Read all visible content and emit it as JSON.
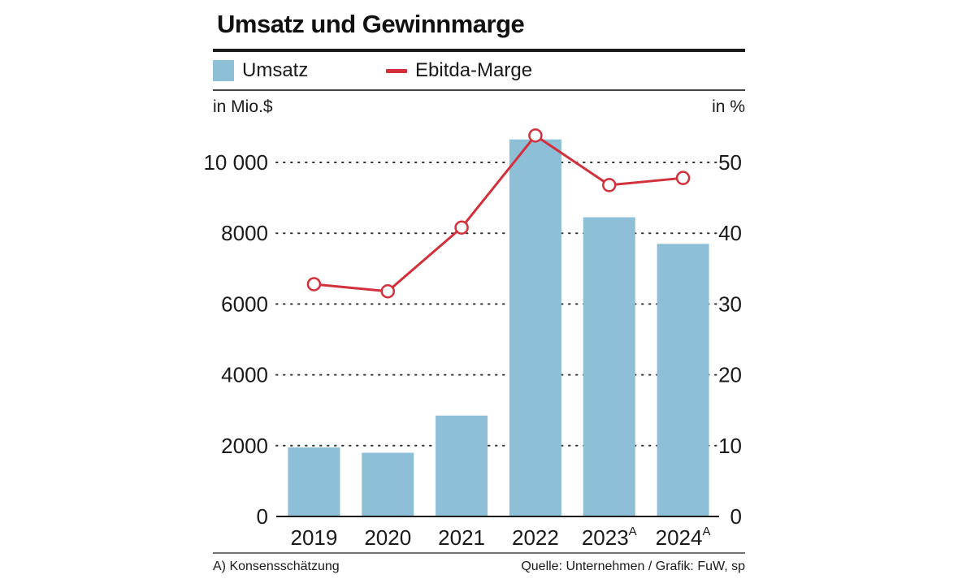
{
  "title": "Umsatz und Gewinnmarge",
  "legend": {
    "bar_label": "Umsatz",
    "line_label": "Ebitda-Marge"
  },
  "units": {
    "left": "in Mio.$",
    "right": "in %"
  },
  "footer": {
    "note": "A) Konsensschätzung",
    "source": "Quelle: Unternehmen / Grafik: FuW, sp"
  },
  "colors": {
    "bar": "#8dbfd6",
    "line": "#d3303b"
  },
  "chart_data": {
    "type": "bar",
    "title": "Umsatz und Gewinnmarge",
    "categories": [
      {
        "label": "2019",
        "sup": ""
      },
      {
        "label": "2020",
        "sup": ""
      },
      {
        "label": "2021",
        "sup": ""
      },
      {
        "label": "2022",
        "sup": ""
      },
      {
        "label": "2023",
        "sup": "A"
      },
      {
        "label": "2024",
        "sup": "A"
      }
    ],
    "series": [
      {
        "name": "Umsatz",
        "type": "bar",
        "axis": "left",
        "values": [
          1950,
          1800,
          2850,
          10650,
          8450,
          7700
        ]
      },
      {
        "name": "Ebitda-Marge",
        "type": "line",
        "axis": "right",
        "values": [
          32.8,
          31.8,
          40.8,
          53.8,
          46.8,
          47.8
        ]
      }
    ],
    "left_axis": {
      "label": "in Mio.$",
      "range": [
        0,
        12500
      ],
      "ticks": [
        0,
        2000,
        4000,
        6000,
        8000,
        10000
      ],
      "tick_labels": [
        "0",
        "2000",
        "4000",
        "6000",
        "8000",
        "10 000"
      ]
    },
    "right_axis": {
      "label": "in %",
      "range": [
        0,
        62.5
      ],
      "ticks": [
        0,
        10,
        20,
        30,
        40,
        50
      ],
      "tick_labels": [
        "0",
        "10",
        "20",
        "30",
        "40",
        "50"
      ]
    },
    "grid": "dotted-horizontal",
    "legend": "top-left"
  }
}
